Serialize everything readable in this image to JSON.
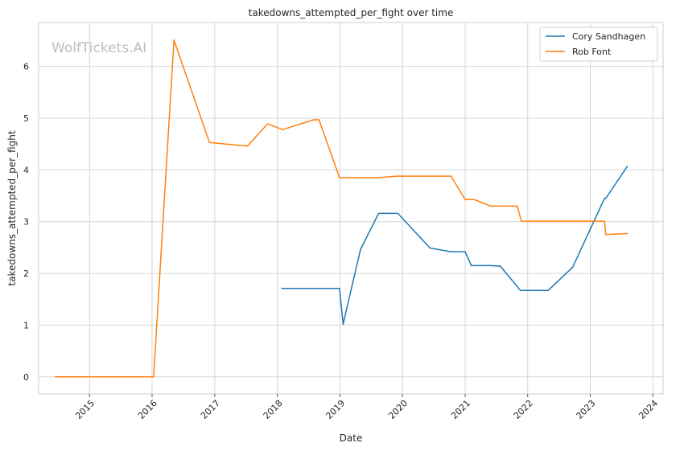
{
  "chart_data": {
    "type": "line",
    "title": "takedowns_attempted_per_fight over time",
    "xlabel": "Date",
    "ylabel": "takedowns_attempted_per_fight",
    "watermark": "WolfTickets.AI",
    "xlim": [
      "2014-03-10",
      "2024-03-01"
    ],
    "ylim": [
      -0.33,
      6.85
    ],
    "x_ticks": [
      "2015-01-01",
      "2016-01-01",
      "2017-01-01",
      "2018-01-01",
      "2019-01-01",
      "2020-01-01",
      "2021-01-01",
      "2022-01-01",
      "2023-01-01",
      "2024-01-01"
    ],
    "x_tick_labels": [
      "2015",
      "2016",
      "2017",
      "2018",
      "2019",
      "2020",
      "2021",
      "2022",
      "2023",
      "2024"
    ],
    "y_ticks": [
      0,
      1,
      2,
      3,
      4,
      5,
      6
    ],
    "y_tick_labels": [
      "0",
      "1",
      "2",
      "3",
      "4",
      "5",
      "6"
    ],
    "grid": true,
    "legend_position": "top-right",
    "series": [
      {
        "name": "Cory Sandhagen",
        "color": "#1f77b4",
        "points": [
          [
            "2018-01-27",
            1.71
          ],
          [
            "2018-12-30",
            1.71
          ],
          [
            "2019-01-20",
            1.02
          ],
          [
            "2019-05-01",
            2.46
          ],
          [
            "2019-08-15",
            3.16
          ],
          [
            "2019-12-05",
            3.16
          ],
          [
            "2020-06-10",
            2.49
          ],
          [
            "2020-10-10",
            2.42
          ],
          [
            "2021-01-01",
            2.42
          ],
          [
            "2021-02-06",
            2.15
          ],
          [
            "2021-06-01",
            2.15
          ],
          [
            "2021-07-25",
            2.14
          ],
          [
            "2021-11-20",
            1.67
          ],
          [
            "2022-04-30",
            1.67
          ],
          [
            "2022-09-20",
            2.12
          ],
          [
            "2023-03-25",
            3.45
          ],
          [
            "2023-04-01",
            3.45
          ],
          [
            "2023-08-05",
            4.07
          ]
        ]
      },
      {
        "name": "Rob Font",
        "color": "#ff7f0e",
        "points": [
          [
            "2014-06-15",
            0.0
          ],
          [
            "2016-01-10",
            0.0
          ],
          [
            "2016-05-08",
            6.51
          ],
          [
            "2016-12-01",
            4.53
          ],
          [
            "2017-07-10",
            4.46
          ],
          [
            "2017-11-05",
            4.89
          ],
          [
            "2018-02-01",
            4.78
          ],
          [
            "2018-08-01",
            4.97
          ],
          [
            "2018-09-01",
            4.97
          ],
          [
            "2018-12-30",
            3.85
          ],
          [
            "2019-08-10",
            3.85
          ],
          [
            "2019-12-01",
            3.88
          ],
          [
            "2020-10-10",
            3.88
          ],
          [
            "2021-01-01",
            3.43
          ],
          [
            "2021-02-20",
            3.43
          ],
          [
            "2021-06-01",
            3.3
          ],
          [
            "2021-11-01",
            3.3
          ],
          [
            "2021-11-25",
            3.01
          ],
          [
            "2023-03-25",
            3.01
          ],
          [
            "2023-04-01",
            2.75
          ],
          [
            "2023-08-05",
            2.77
          ]
        ]
      }
    ]
  }
}
